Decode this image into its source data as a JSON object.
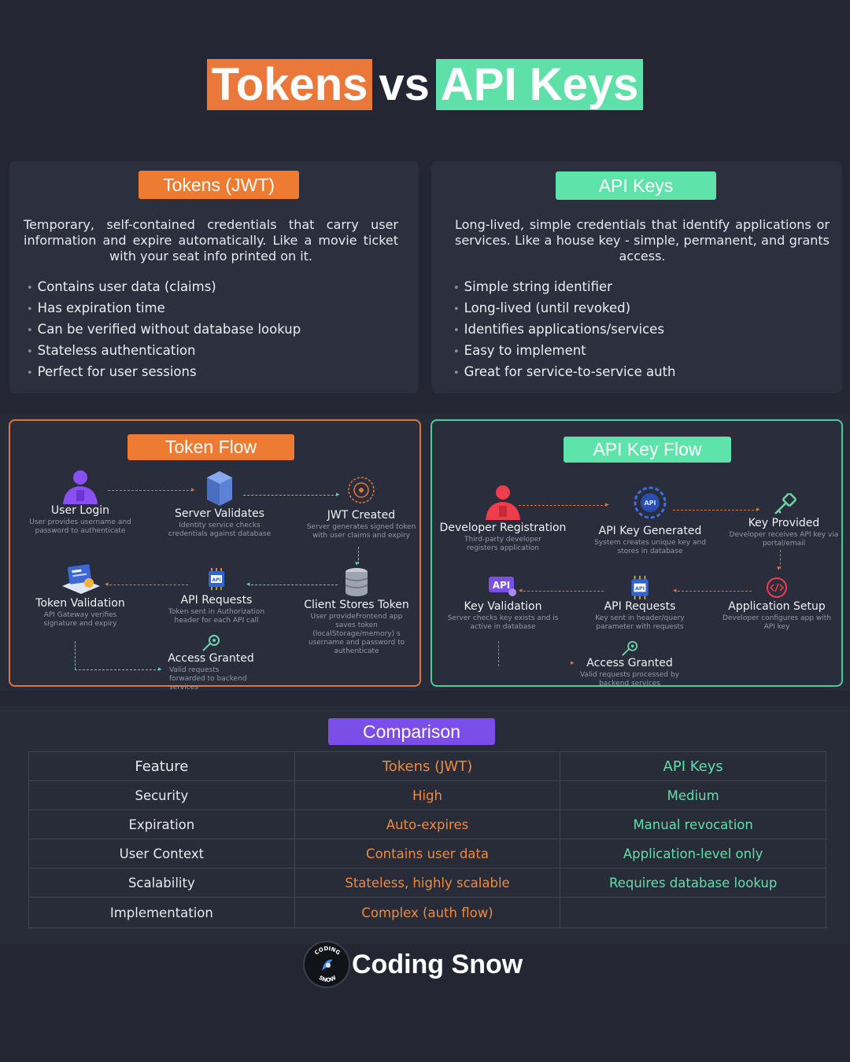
{
  "title": {
    "part1": "Tokens",
    "vs": "vs",
    "part2": "API Keys"
  },
  "tokens": {
    "pill": "Tokens (JWT)",
    "description": "Temporary, self-contained credentials that carry user information and expire automatically. Like a movie ticket with your seat info printed on it.",
    "bullets": [
      "Contains user data (claims)",
      "Has expiration time",
      "Can be verified without database lookup",
      "Stateless authentication",
      "Perfect for user sessions"
    ]
  },
  "apikeys": {
    "pill": "API Keys",
    "description": "Long-lived, simple credentials that identify applications or services. Like a house key - simple, permanent, and grants access.",
    "bullets": [
      "Simple string identifier",
      "Long-lived (until revoked)",
      "Identifies applications/services",
      "Easy to implement",
      "Great for service-to-service auth"
    ]
  },
  "token_flow": {
    "pill": "Token Flow",
    "nodes": {
      "user_login": {
        "title": "User Login",
        "desc": "User provides username and password to authenticate"
      },
      "server_validates": {
        "title": "Server Validates",
        "desc": "Identity service checks credentials against database"
      },
      "jwt_created": {
        "title": "JWT Created",
        "desc": "Server generates signed token with user claims and expiry"
      },
      "client_stores": {
        "title": "Client Stores Token",
        "desc": "User provideFrontend app saves token (localStorage/memory) s username and password to authenticate"
      },
      "api_requests": {
        "title": "API Requests",
        "desc": "Token sent in Authorization header for each API call"
      },
      "token_validation": {
        "title": "Token Validation",
        "desc": "API Gateway verifies signature and expiry"
      },
      "access_granted": {
        "title": "Access Granted",
        "desc": "Valid requests forwarded to backend services"
      }
    }
  },
  "api_flow": {
    "pill": "API Key Flow",
    "nodes": {
      "dev_registration": {
        "title": "Developer Registration",
        "desc": "Third-party developer registers application"
      },
      "key_generated": {
        "title": "API Key Generated",
        "desc": "System creates unique key and stores in database"
      },
      "key_provided": {
        "title": "Key Provided",
        "desc": "Developer receives API key via portal/email"
      },
      "app_setup": {
        "title": "Application Setup",
        "desc": "Developer configures app with API key"
      },
      "api_requests": {
        "title": "API Requests",
        "desc": "Key sent in header/query parameter with requests"
      },
      "key_validation": {
        "title": "Key Validation",
        "desc": "Server checks key exists and is active in database"
      },
      "access_granted": {
        "title": "Access Granted",
        "desc": "Valid requests processed by backend services"
      }
    }
  },
  "comparison": {
    "pill": "Comparison",
    "headers": [
      "Feature",
      "Tokens (JWT)",
      "API Keys"
    ],
    "rows": [
      [
        "Security",
        "High",
        "Medium"
      ],
      [
        "Expiration",
        "Auto-expires",
        "Manual revocation"
      ],
      [
        "User Context",
        "Contains user data",
        "Application-level only"
      ],
      [
        "Scalability",
        "Stateless, highly scalable",
        "Requires database lookup"
      ],
      [
        "Implementation",
        "Complex (auth flow)",
        ""
      ]
    ]
  },
  "footer": {
    "brand": "Coding Snow",
    "logo_text_top": "CODING",
    "logo_text_bottom": "SNOW"
  },
  "colors": {
    "orange": "#ee7b32",
    "green": "#5ee3aa",
    "purple": "#7b4ee8",
    "background": "#242733"
  }
}
